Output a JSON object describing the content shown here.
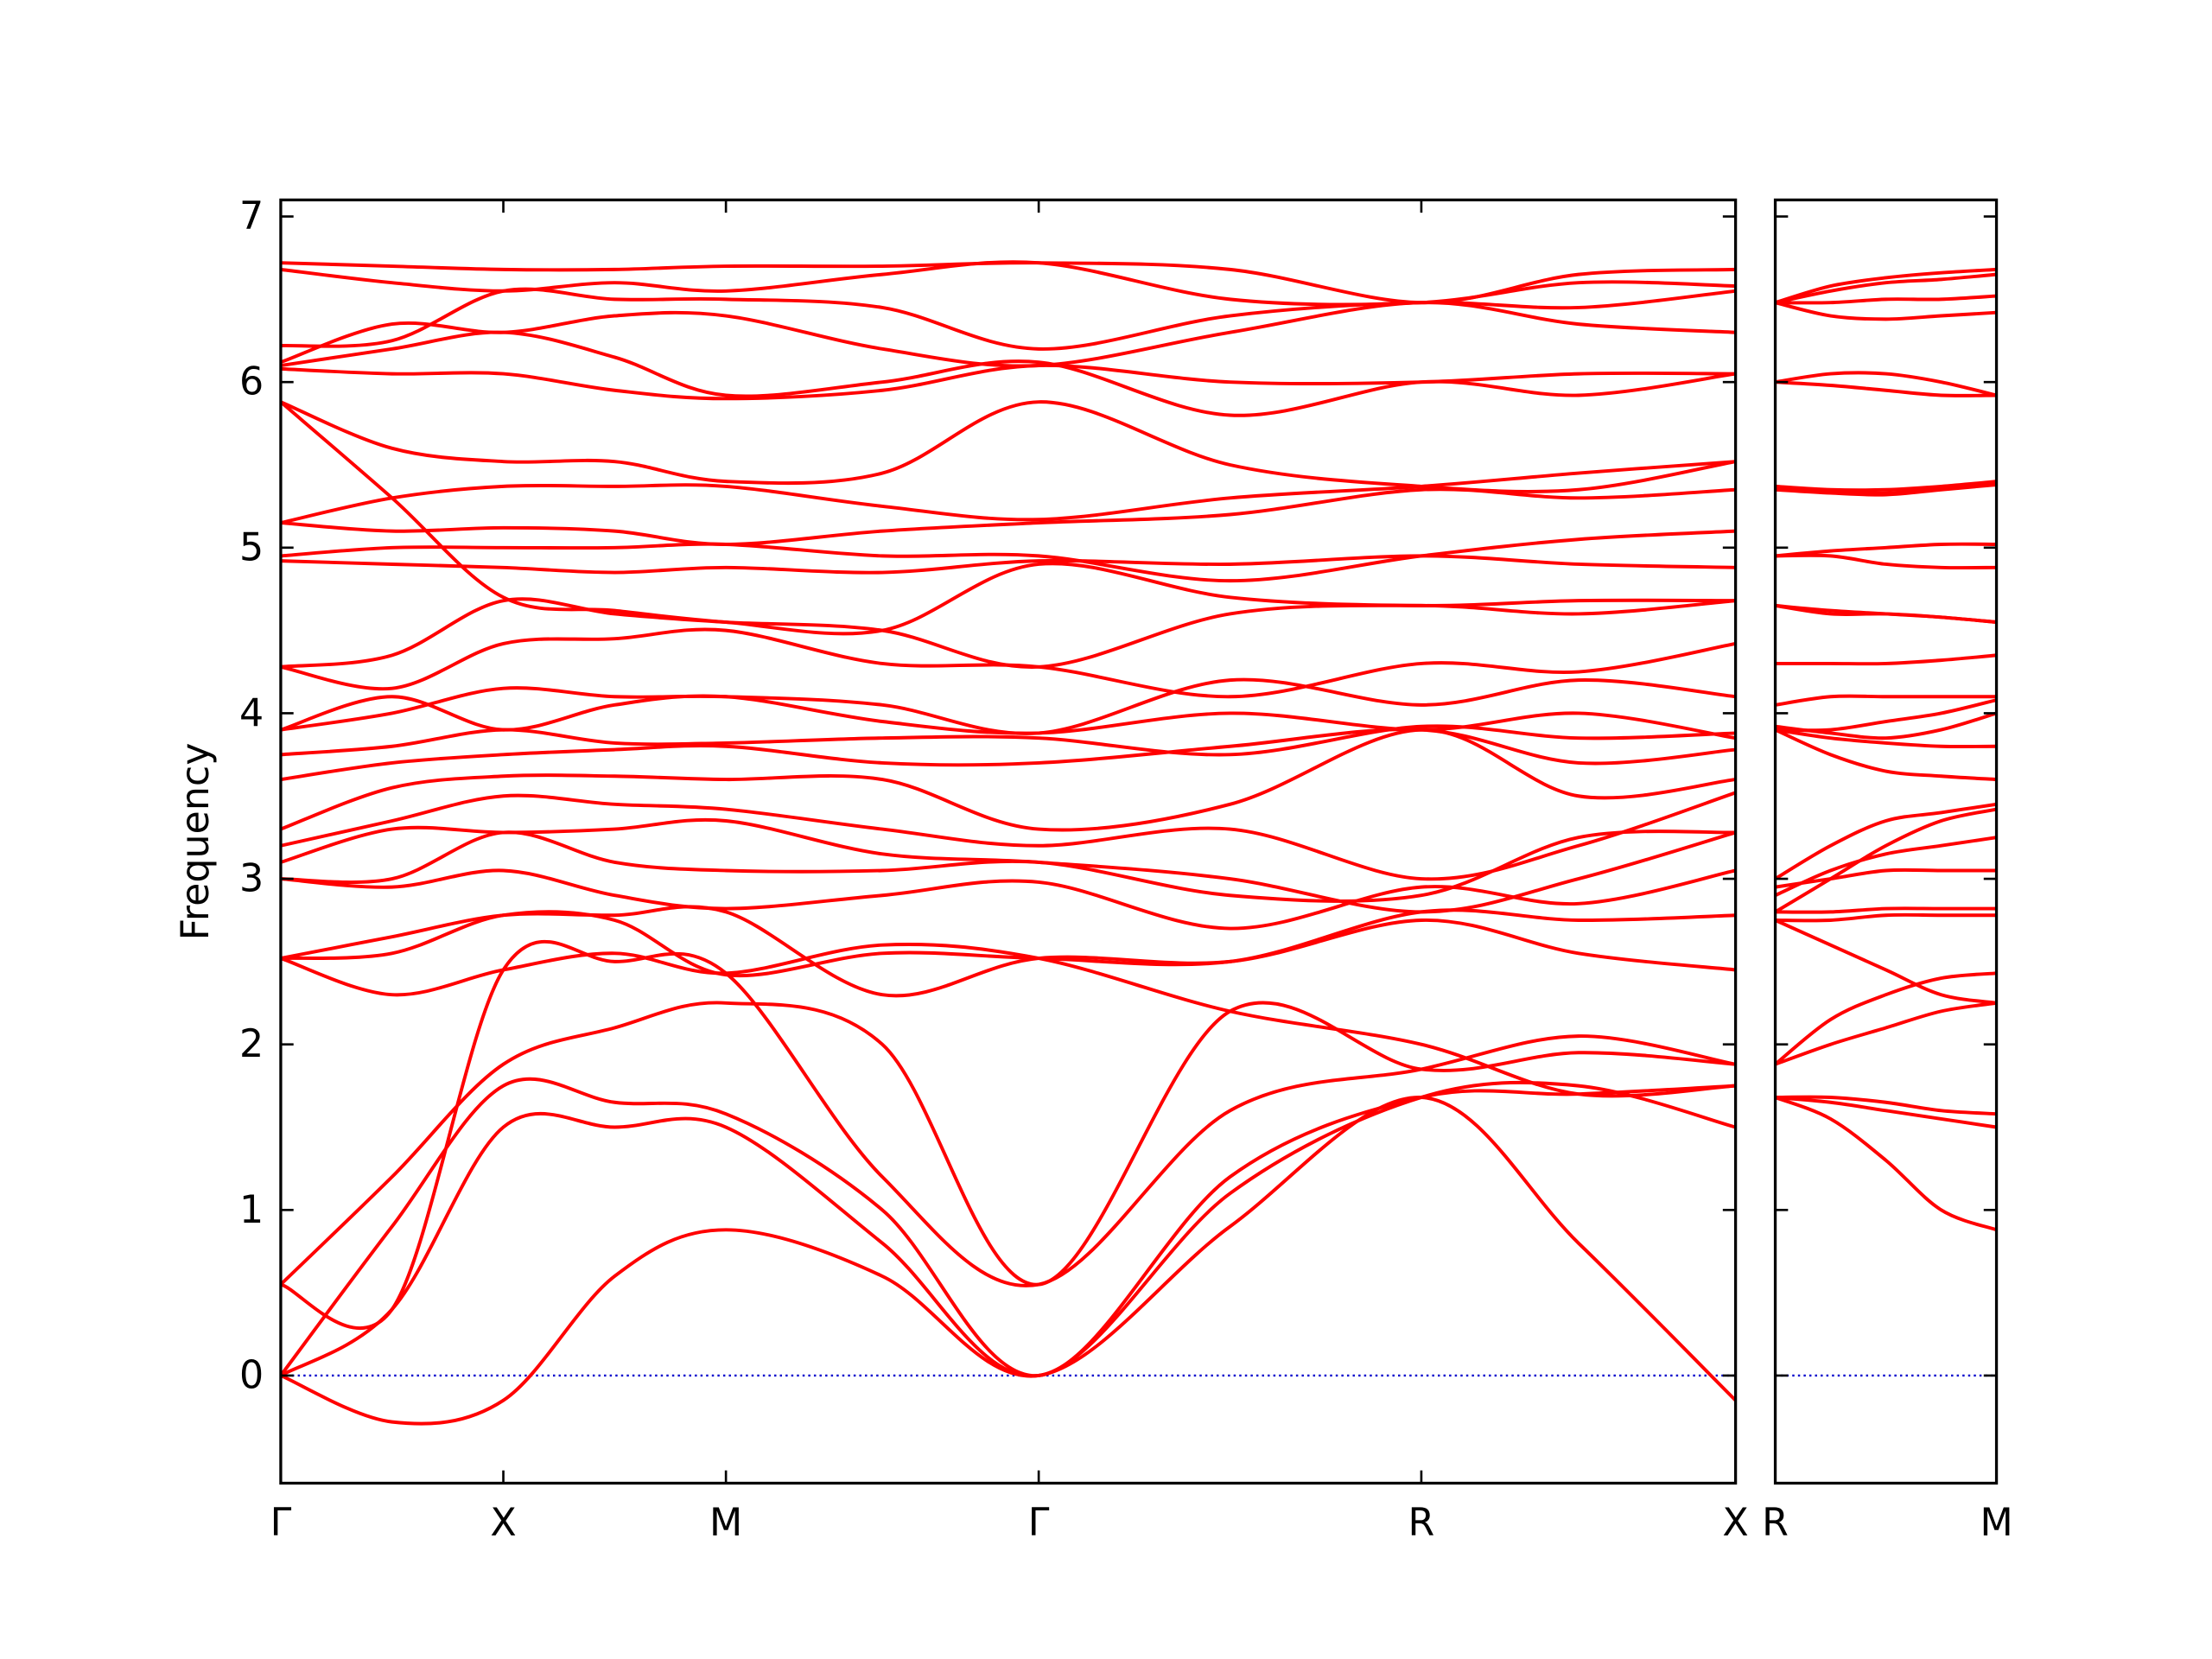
{
  "chart_data": [
    {
      "type": "line",
      "ylabel": "Frequency",
      "color": "#ff0000",
      "x": [
        0,
        0.0765,
        0.153,
        0.2295,
        0.306,
        0.4135,
        0.521,
        0.6525,
        0.784,
        0.892,
        1.0
      ],
      "xlim": [
        0,
        1.0
      ],
      "ylim": [
        -0.65,
        7.1
      ],
      "xticks": [
        {
          "value": 0,
          "label": "Γ"
        },
        {
          "value": 0.153,
          "label": "X"
        },
        {
          "value": 0.306,
          "label": "M"
        },
        {
          "value": 0.521,
          "label": "Γ"
        },
        {
          "value": 0.784,
          "label": "R"
        },
        {
          "value": 1.0,
          "label": "X"
        }
      ],
      "yticks": [
        0,
        1,
        2,
        3,
        4,
        5,
        6,
        7
      ],
      "hline": {
        "value": 0,
        "color": "#0000cc"
      },
      "series": [
        {
          "values": [
            0,
            -0.28,
            -0.15,
            0.6,
            0.88,
            0.6,
            0,
            0.9,
            1.68,
            0.8,
            -0.15
          ]
        },
        {
          "values": [
            0,
            0.4,
            1.5,
            1.5,
            1.5,
            0.8,
            0,
            1.1,
            1.68,
            1.75,
            1.5
          ]
        },
        {
          "values": [
            0,
            0.9,
            1.75,
            1.65,
            1.58,
            1.0,
            0,
            1.2,
            1.68,
            1.7,
            1.75
          ]
        },
        {
          "values": [
            0.55,
            1.2,
            1.88,
            2.1,
            2.25,
            2.0,
            0.55,
            2.2,
            1.85,
            1.95,
            1.88
          ]
        },
        {
          "values": [
            0.55,
            0.4,
            2.45,
            2.5,
            2.43,
            1.2,
            0.55,
            1.6,
            1.85,
            2.05,
            1.88
          ]
        },
        {
          "values": [
            2.52,
            2.3,
            2.45,
            2.55,
            2.43,
            2.6,
            2.52,
            2.2,
            2.0,
            1.7,
            1.75
          ]
        },
        {
          "values": [
            2.52,
            2.65,
            2.78,
            2.78,
            2.8,
            2.3,
            2.52,
            2.5,
            2.75,
            2.55,
            2.45
          ]
        },
        {
          "values": [
            2.52,
            2.55,
            2.78,
            2.75,
            2.42,
            2.55,
            2.52,
            2.5,
            2.8,
            2.75,
            2.78
          ]
        },
        {
          "values": [
            3.0,
            2.95,
            3.05,
            2.9,
            2.82,
            2.9,
            2.98,
            2.7,
            2.95,
            2.85,
            3.05
          ]
        },
        {
          "values": [
            3.0,
            3.0,
            3.28,
            3.1,
            3.05,
            3.05,
            3.1,
            2.9,
            2.9,
            3.25,
            3.28
          ]
        },
        {
          "values": [
            3.1,
            3.3,
            3.28,
            3.3,
            3.35,
            3.15,
            3.1,
            3.0,
            2.8,
            3.0,
            3.28
          ]
        },
        {
          "values": [
            3.2,
            3.35,
            3.5,
            3.45,
            3.42,
            3.3,
            3.2,
            3.3,
            3.0,
            3.2,
            3.52
          ]
        },
        {
          "values": [
            3.3,
            3.55,
            3.62,
            3.62,
            3.6,
            3.6,
            3.3,
            3.45,
            3.9,
            3.5,
            3.6
          ]
        },
        {
          "values": [
            3.6,
            3.7,
            3.75,
            3.78,
            3.8,
            3.7,
            3.7,
            3.8,
            3.9,
            3.7,
            3.78
          ]
        },
        {
          "values": [
            3.75,
            3.8,
            3.9,
            3.82,
            3.82,
            3.85,
            3.85,
            3.75,
            3.92,
            3.85,
            3.88
          ]
        },
        {
          "values": [
            3.9,
            4.1,
            3.9,
            4.05,
            4.1,
            3.95,
            3.88,
            4.0,
            3.9,
            4.0,
            3.85
          ]
        },
        {
          "values": [
            3.9,
            4.0,
            4.15,
            4.1,
            4.1,
            4.05,
            3.88,
            4.2,
            4.05,
            4.2,
            4.1
          ]
        },
        {
          "values": [
            4.28,
            4.15,
            4.42,
            4.45,
            4.5,
            4.3,
            4.28,
            4.1,
            4.3,
            4.25,
            4.42
          ]
        },
        {
          "values": [
            4.28,
            4.35,
            4.68,
            4.6,
            4.55,
            4.5,
            4.28,
            4.6,
            4.65,
            4.6,
            4.68
          ]
        },
        {
          "values": [
            4.92,
            4.9,
            4.88,
            4.85,
            4.88,
            4.85,
            4.92,
            4.9,
            4.95,
            4.9,
            4.88
          ]
        },
        {
          "values": [
            4.95,
            5.0,
            5.0,
            5.0,
            5.02,
            4.95,
            4.95,
            4.8,
            4.95,
            5.05,
            5.1
          ]
        },
        {
          "values": [
            5.15,
            5.1,
            5.12,
            5.1,
            5.02,
            5.1,
            5.15,
            5.2,
            5.35,
            5.3,
            5.35
          ]
        },
        {
          "values": [
            5.15,
            5.3,
            5.37,
            5.37,
            5.37,
            5.25,
            5.17,
            5.3,
            5.37,
            5.45,
            5.52
          ]
        },
        {
          "values": [
            5.88,
            5.6,
            5.52,
            5.52,
            5.4,
            5.45,
            5.88,
            5.5,
            5.37,
            5.35,
            5.52
          ]
        },
        {
          "values": [
            5.88,
            5.3,
            4.7,
            4.62,
            4.55,
            4.5,
            4.9,
            4.7,
            4.65,
            4.68,
            4.68
          ]
        },
        {
          "values": [
            6.08,
            6.05,
            6.05,
            5.95,
            5.9,
            5.95,
            6.1,
            6.0,
            6.0,
            6.05,
            6.05
          ]
        },
        {
          "values": [
            6.1,
            6.2,
            6.3,
            6.15,
            5.92,
            6.0,
            6.12,
            5.8,
            6.0,
            5.92,
            6.05
          ]
        },
        {
          "values": [
            6.12,
            6.35,
            6.3,
            6.4,
            6.4,
            6.2,
            6.1,
            6.3,
            6.48,
            6.35,
            6.3
          ]
        },
        {
          "values": [
            6.22,
            6.25,
            6.55,
            6.5,
            6.5,
            6.45,
            6.2,
            6.4,
            6.48,
            6.45,
            6.55
          ]
        },
        {
          "values": [
            6.68,
            6.6,
            6.55,
            6.6,
            6.55,
            6.65,
            6.72,
            6.5,
            6.48,
            6.6,
            6.58
          ]
        },
        {
          "values": [
            6.72,
            6.7,
            6.68,
            6.68,
            6.7,
            6.7,
            6.72,
            6.68,
            6.48,
            6.65,
            6.68
          ]
        }
      ]
    },
    {
      "type": "line",
      "color": "#ff0000",
      "ytick_labels": false,
      "x": [
        0,
        0.038,
        0.076,
        0.114,
        0.152
      ],
      "xlim": [
        0,
        0.152
      ],
      "ylim": [
        -0.65,
        7.1
      ],
      "xticks": [
        {
          "value": 0,
          "label": "R"
        },
        {
          "value": 0.152,
          "label": "M"
        }
      ],
      "yticks": [
        0,
        1,
        2,
        3,
        4,
        5,
        6,
        7
      ],
      "hline": {
        "value": 0,
        "color": "#0000cc"
      },
      "series": [
        {
          "values": [
            1.68,
            1.55,
            1.3,
            1.0,
            0.88
          ]
        },
        {
          "values": [
            1.68,
            1.65,
            1.6,
            1.55,
            1.5
          ]
        },
        {
          "values": [
            1.68,
            1.68,
            1.65,
            1.6,
            1.58
          ]
        },
        {
          "values": [
            1.88,
            2.0,
            2.1,
            2.2,
            2.25
          ]
        },
        {
          "values": [
            1.88,
            2.15,
            2.3,
            2.4,
            2.43
          ]
        },
        {
          "values": [
            2.75,
            2.6,
            2.45,
            2.3,
            2.25
          ]
        },
        {
          "values": [
            2.75,
            2.75,
            2.78,
            2.78,
            2.78
          ]
        },
        {
          "values": [
            2.8,
            2.8,
            2.82,
            2.82,
            2.82
          ]
        },
        {
          "values": [
            2.95,
            3.0,
            3.05,
            3.05,
            3.05
          ]
        },
        {
          "values": [
            2.9,
            3.05,
            3.15,
            3.2,
            3.25
          ]
        },
        {
          "values": [
            2.8,
            3.0,
            3.2,
            3.35,
            3.42
          ]
        },
        {
          "values": [
            3.0,
            3.2,
            3.35,
            3.4,
            3.45
          ]
        },
        {
          "values": [
            3.9,
            3.75,
            3.65,
            3.62,
            3.6
          ]
        },
        {
          "values": [
            3.9,
            3.85,
            3.82,
            3.8,
            3.8
          ]
        },
        {
          "values": [
            3.92,
            3.88,
            3.85,
            3.9,
            4.0
          ]
        },
        {
          "values": [
            3.9,
            3.9,
            3.95,
            4.0,
            4.08
          ]
        },
        {
          "values": [
            4.05,
            4.1,
            4.1,
            4.1,
            4.1
          ]
        },
        {
          "values": [
            4.3,
            4.3,
            4.3,
            4.32,
            4.35
          ]
        },
        {
          "values": [
            4.65,
            4.62,
            4.6,
            4.58,
            4.55
          ]
        },
        {
          "values": [
            4.95,
            4.95,
            4.9,
            4.88,
            4.88
          ]
        },
        {
          "values": [
            4.95,
            4.98,
            5.0,
            5.02,
            5.02
          ]
        },
        {
          "values": [
            5.35,
            5.33,
            5.32,
            5.35,
            5.38
          ]
        },
        {
          "values": [
            5.37,
            5.35,
            5.35,
            5.37,
            5.4
          ]
        },
        {
          "values": [
            5.37,
            5.34,
            5.33,
            5.36,
            5.39
          ]
        },
        {
          "values": [
            4.65,
            4.6,
            4.6,
            4.58,
            4.55
          ]
        },
        {
          "values": [
            6.0,
            6.05,
            6.05,
            6.0,
            5.92
          ]
        },
        {
          "values": [
            6.0,
            5.98,
            5.95,
            5.92,
            5.92
          ]
        },
        {
          "values": [
            6.48,
            6.4,
            6.38,
            6.4,
            6.42
          ]
        },
        {
          "values": [
            6.48,
            6.48,
            6.5,
            6.5,
            6.52
          ]
        },
        {
          "values": [
            6.48,
            6.55,
            6.6,
            6.62,
            6.65
          ]
        },
        {
          "values": [
            6.48,
            6.58,
            6.63,
            6.66,
            6.68
          ]
        }
      ]
    }
  ]
}
